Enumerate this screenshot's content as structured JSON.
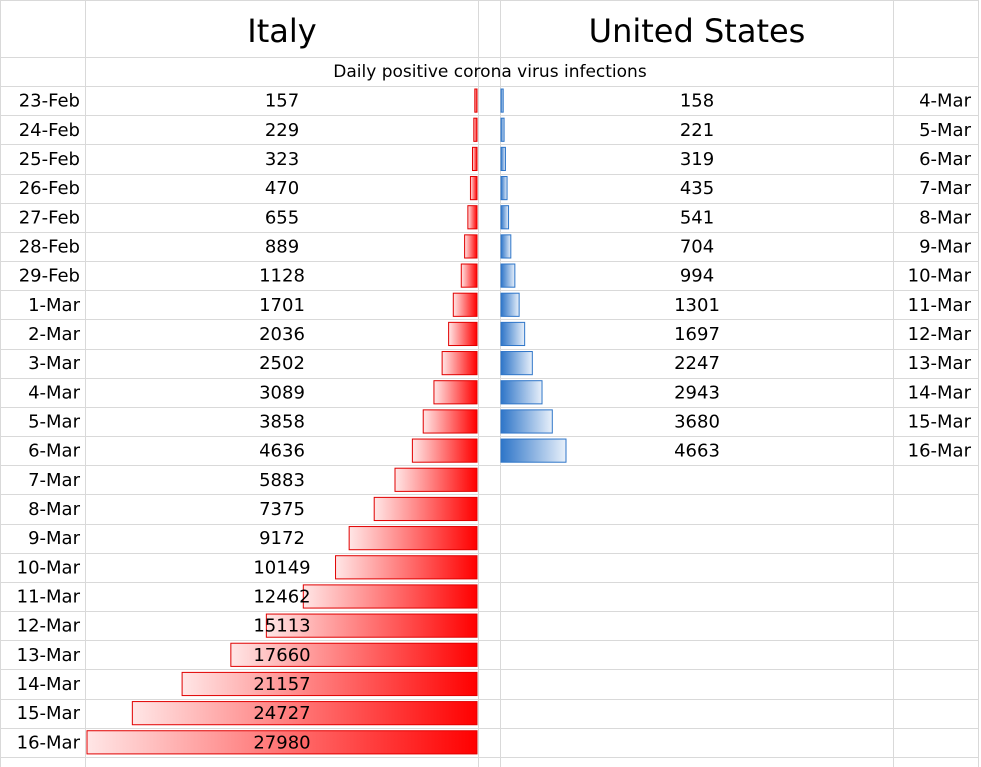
{
  "header": {
    "left_title": "Italy",
    "right_title": "United States",
    "subtitle": "Daily positive corona virus infections"
  },
  "italy": {
    "dates": [
      "23-Feb",
      "24-Feb",
      "25-Feb",
      "26-Feb",
      "27-Feb",
      "28-Feb",
      "29-Feb",
      "1-Mar",
      "2-Mar",
      "3-Mar",
      "4-Mar",
      "5-Mar",
      "6-Mar",
      "7-Mar",
      "8-Mar",
      "9-Mar",
      "10-Mar",
      "11-Mar",
      "12-Mar",
      "13-Mar",
      "14-Mar",
      "15-Mar",
      "16-Mar"
    ],
    "values": [
      157,
      229,
      323,
      470,
      655,
      889,
      1128,
      1701,
      2036,
      2502,
      3089,
      3858,
      4636,
      5883,
      7375,
      9172,
      10149,
      12462,
      15113,
      17660,
      21157,
      24727,
      27980
    ]
  },
  "us": {
    "dates": [
      "4-Mar",
      "5-Mar",
      "6-Mar",
      "7-Mar",
      "8-Mar",
      "9-Mar",
      "10-Mar",
      "11-Mar",
      "12-Mar",
      "13-Mar",
      "14-Mar",
      "15-Mar",
      "16-Mar"
    ],
    "values": [
      158,
      221,
      319,
      435,
      541,
      704,
      994,
      1301,
      1697,
      2247,
      2943,
      3680,
      4663
    ]
  }
}
